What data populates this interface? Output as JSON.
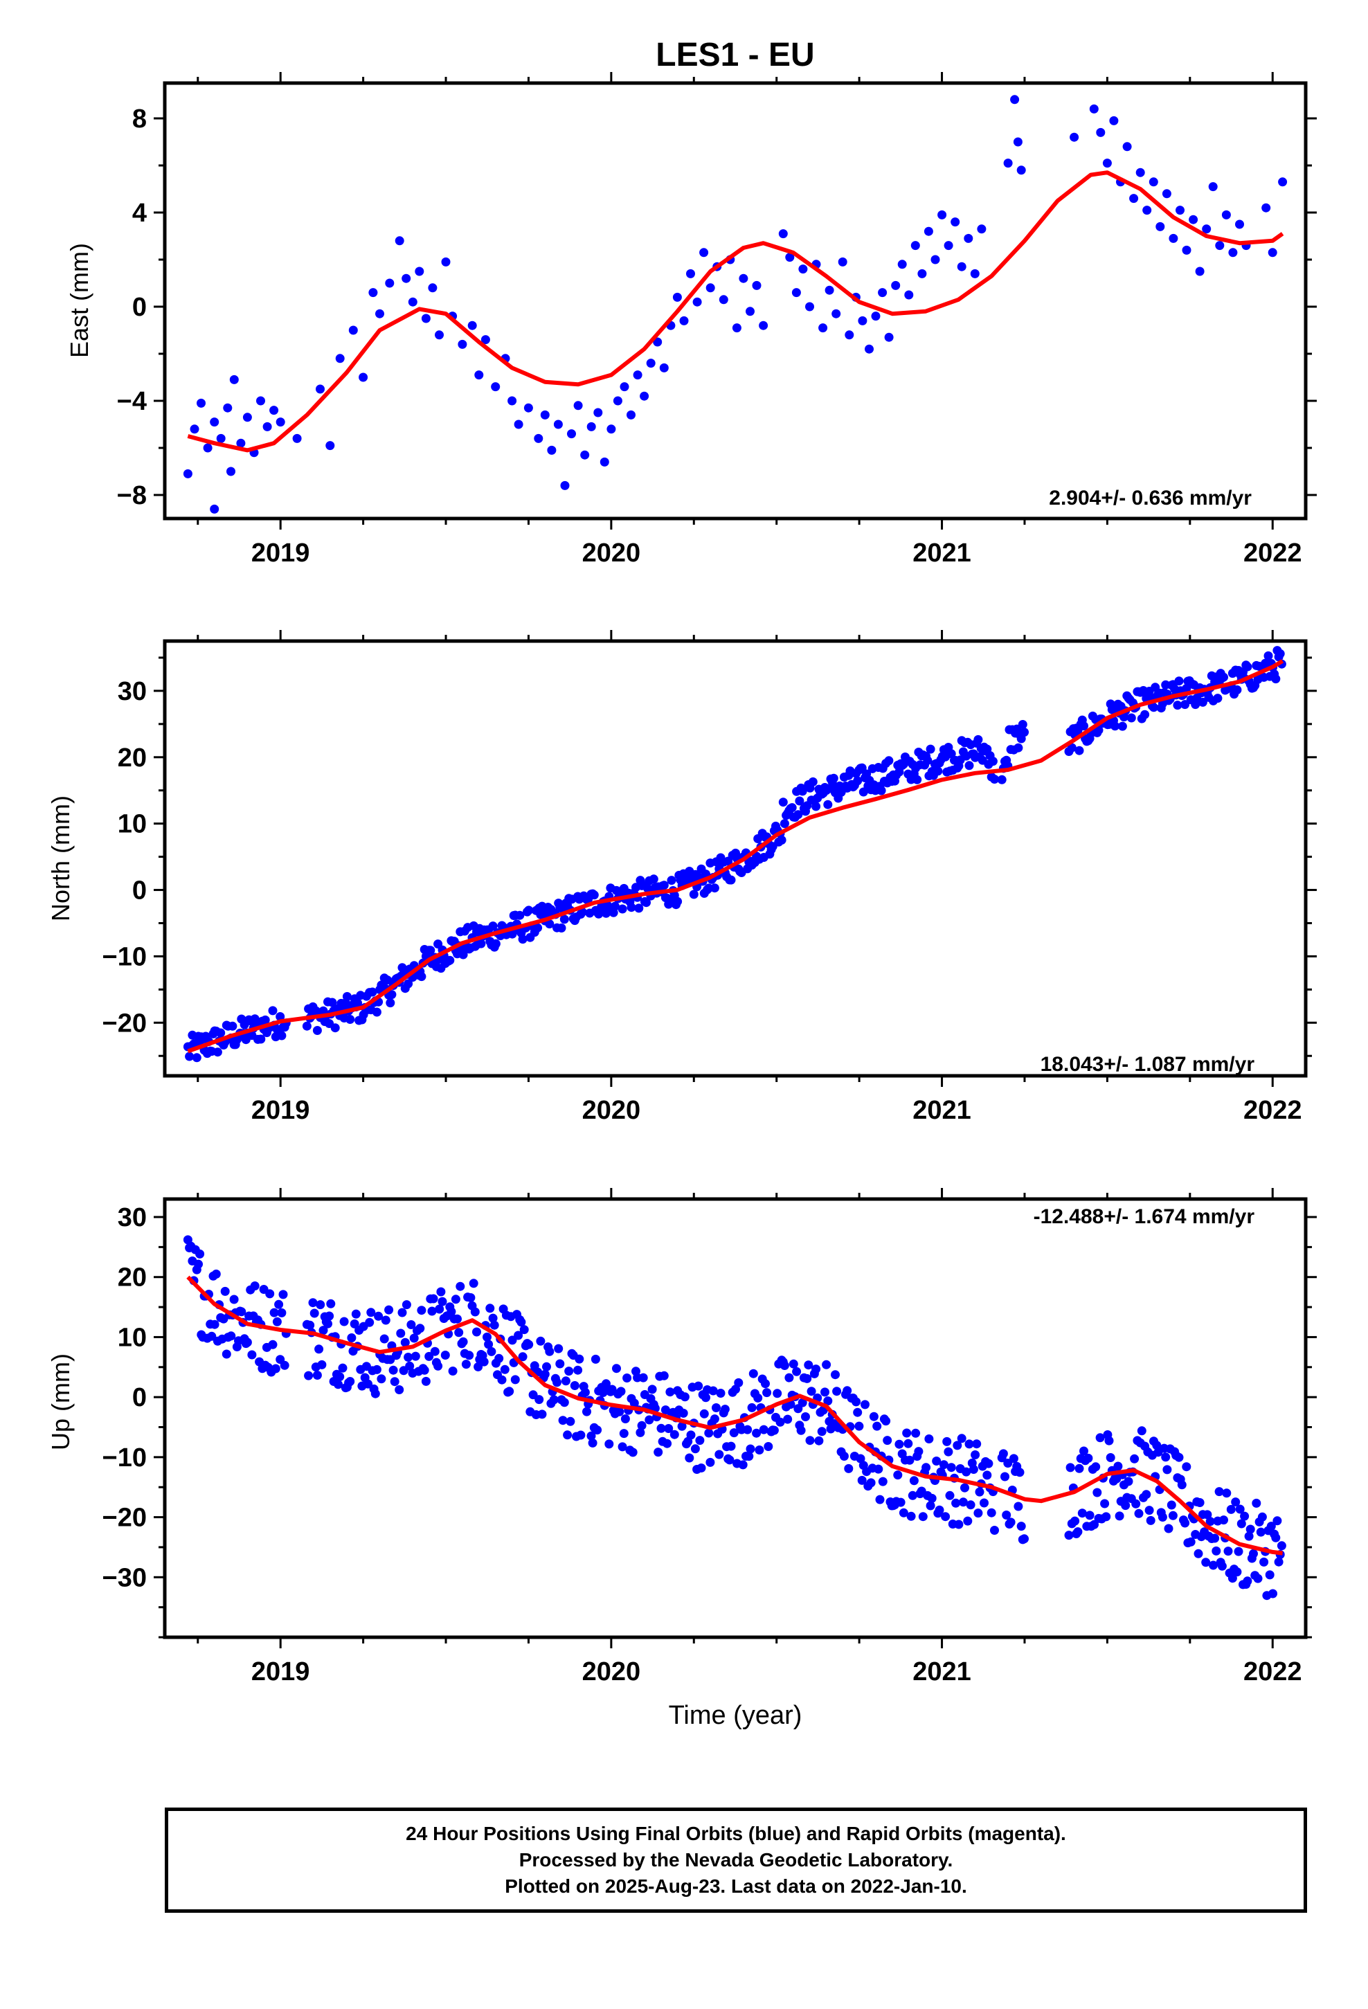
{
  "title": "LES1 - EU",
  "xlabel": "Time (year)",
  "colors": {
    "points": "#0000ff",
    "fit": "#ff0000",
    "frame": "#000000"
  },
  "caption": {
    "line1": "24 Hour Positions Using Final Orbits (blue) and Rapid Orbits (magenta).",
    "line2": "Processed by the Nevada Geodetic Laboratory.",
    "line3": "Plotted on 2025-Aug-23. Last data on 2022-Jan-10."
  },
  "chart_data": [
    {
      "type": "scatter",
      "ylabel": "East (mm)",
      "rate": "2.904+/- 0.636 mm/yr",
      "rate_position": "bottom-right",
      "xlim": [
        2018.65,
        2022.1
      ],
      "ylim": [
        -9,
        9.5
      ],
      "xticks": [
        2019,
        2020,
        2021,
        2022
      ],
      "yticks": [
        -8,
        -4,
        0,
        4,
        8
      ],
      "fit": [
        [
          2018.72,
          -5.5
        ],
        [
          2018.8,
          -5.8
        ],
        [
          2018.9,
          -6.1
        ],
        [
          2018.98,
          -5.8
        ],
        [
          2019.08,
          -4.6
        ],
        [
          2019.2,
          -2.8
        ],
        [
          2019.3,
          -1.0
        ],
        [
          2019.42,
          -0.1
        ],
        [
          2019.5,
          -0.3
        ],
        [
          2019.6,
          -1.5
        ],
        [
          2019.7,
          -2.6
        ],
        [
          2019.8,
          -3.2
        ],
        [
          2019.9,
          -3.3
        ],
        [
          2020.0,
          -2.9
        ],
        [
          2020.1,
          -1.8
        ],
        [
          2020.2,
          -0.2
        ],
        [
          2020.3,
          1.5
        ],
        [
          2020.4,
          2.5
        ],
        [
          2020.46,
          2.7
        ],
        [
          2020.55,
          2.3
        ],
        [
          2020.65,
          1.3
        ],
        [
          2020.75,
          0.2
        ],
        [
          2020.85,
          -0.3
        ],
        [
          2020.95,
          -0.2
        ],
        [
          2021.05,
          0.3
        ],
        [
          2021.15,
          1.3
        ],
        [
          2021.25,
          2.8
        ],
        [
          2021.35,
          4.5
        ],
        [
          2021.45,
          5.6
        ],
        [
          2021.5,
          5.7
        ],
        [
          2021.6,
          5.0
        ],
        [
          2021.7,
          3.8
        ],
        [
          2021.8,
          3.0
        ],
        [
          2021.9,
          2.7
        ],
        [
          2022.0,
          2.8
        ],
        [
          2022.03,
          3.1
        ]
      ],
      "points": [
        [
          2018.72,
          -7.1
        ],
        [
          2018.74,
          -5.2
        ],
        [
          2018.76,
          -4.1
        ],
        [
          2018.78,
          -6.0
        ],
        [
          2018.8,
          -4.9
        ],
        [
          2018.82,
          -5.6
        ],
        [
          2018.84,
          -4.3
        ],
        [
          2018.86,
          -3.1
        ],
        [
          2018.88,
          -5.8
        ],
        [
          2018.9,
          -4.7
        ],
        [
          2018.92,
          -6.2
        ],
        [
          2018.94,
          -4.0
        ],
        [
          2018.96,
          -5.1
        ],
        [
          2018.98,
          -4.4
        ],
        [
          2019.0,
          -4.9
        ],
        [
          2018.8,
          -8.6
        ],
        [
          2018.85,
          -7.0
        ],
        [
          2019.05,
          -5.6
        ],
        [
          2019.12,
          -3.5
        ],
        [
          2019.15,
          -5.9
        ],
        [
          2019.18,
          -2.2
        ],
        [
          2019.22,
          -1.0
        ],
        [
          2019.25,
          -3.0
        ],
        [
          2019.28,
          0.6
        ],
        [
          2019.3,
          -0.3
        ],
        [
          2019.33,
          1.0
        ],
        [
          2019.36,
          2.8
        ],
        [
          2019.38,
          1.2
        ],
        [
          2019.4,
          0.2
        ],
        [
          2019.42,
          1.5
        ],
        [
          2019.44,
          -0.5
        ],
        [
          2019.46,
          0.8
        ],
        [
          2019.48,
          -1.2
        ],
        [
          2019.5,
          1.9
        ],
        [
          2019.52,
          -0.4
        ],
        [
          2019.55,
          -1.6
        ],
        [
          2019.58,
          -0.8
        ],
        [
          2019.6,
          -2.9
        ],
        [
          2019.62,
          -1.4
        ],
        [
          2019.65,
          -3.4
        ],
        [
          2019.68,
          -2.2
        ],
        [
          2019.7,
          -4.0
        ],
        [
          2019.72,
          -5.0
        ],
        [
          2019.75,
          -4.3
        ],
        [
          2019.78,
          -5.6
        ],
        [
          2019.8,
          -4.6
        ],
        [
          2019.82,
          -6.1
        ],
        [
          2019.84,
          -5.0
        ],
        [
          2019.86,
          -7.6
        ],
        [
          2019.88,
          -5.4
        ],
        [
          2019.9,
          -4.2
        ],
        [
          2019.92,
          -6.3
        ],
        [
          2019.94,
          -5.1
        ],
        [
          2019.96,
          -4.5
        ],
        [
          2019.98,
          -6.6
        ],
        [
          2020.0,
          -5.2
        ],
        [
          2020.02,
          -4.0
        ],
        [
          2020.04,
          -3.4
        ],
        [
          2020.06,
          -4.6
        ],
        [
          2020.08,
          -2.9
        ],
        [
          2020.1,
          -3.8
        ],
        [
          2020.12,
          -2.4
        ],
        [
          2020.14,
          -1.5
        ],
        [
          2020.16,
          -2.6
        ],
        [
          2020.18,
          -0.8
        ],
        [
          2020.2,
          0.4
        ],
        [
          2020.22,
          -0.6
        ],
        [
          2020.24,
          1.4
        ],
        [
          2020.26,
          0.2
        ],
        [
          2020.28,
          2.3
        ],
        [
          2020.3,
          0.8
        ],
        [
          2020.32,
          1.7
        ],
        [
          2020.34,
          0.3
        ],
        [
          2020.36,
          2.0
        ],
        [
          2020.38,
          -0.9
        ],
        [
          2020.4,
          1.2
        ],
        [
          2020.42,
          -0.2
        ],
        [
          2020.44,
          0.9
        ],
        [
          2020.46,
          -0.8
        ],
        [
          2020.52,
          3.1
        ],
        [
          2020.54,
          2.1
        ],
        [
          2020.56,
          0.6
        ],
        [
          2020.58,
          1.6
        ],
        [
          2020.6,
          0.0
        ],
        [
          2020.62,
          1.8
        ],
        [
          2020.64,
          -0.9
        ],
        [
          2020.66,
          0.7
        ],
        [
          2020.68,
          -0.3
        ],
        [
          2020.7,
          1.9
        ],
        [
          2020.72,
          -1.2
        ],
        [
          2020.74,
          0.4
        ],
        [
          2020.76,
          -0.6
        ],
        [
          2020.78,
          -1.8
        ],
        [
          2020.8,
          -0.4
        ],
        [
          2020.82,
          0.6
        ],
        [
          2020.84,
          -1.3
        ],
        [
          2020.86,
          0.9
        ],
        [
          2020.88,
          1.8
        ],
        [
          2020.9,
          0.5
        ],
        [
          2020.92,
          2.6
        ],
        [
          2020.94,
          1.4
        ],
        [
          2020.96,
          3.2
        ],
        [
          2020.98,
          2.0
        ],
        [
          2021.0,
          3.9
        ],
        [
          2021.02,
          2.6
        ],
        [
          2021.04,
          3.6
        ],
        [
          2021.06,
          1.7
        ],
        [
          2021.08,
          2.9
        ],
        [
          2021.1,
          1.4
        ],
        [
          2021.12,
          3.3
        ],
        [
          2021.2,
          6.1
        ],
        [
          2021.22,
          8.8
        ],
        [
          2021.23,
          7.0
        ],
        [
          2021.24,
          5.8
        ],
        [
          2021.4,
          7.2
        ],
        [
          2021.46,
          8.4
        ],
        [
          2021.48,
          7.4
        ],
        [
          2021.5,
          6.1
        ],
        [
          2021.52,
          7.9
        ],
        [
          2021.54,
          5.3
        ],
        [
          2021.56,
          6.8
        ],
        [
          2021.58,
          4.6
        ],
        [
          2021.6,
          5.7
        ],
        [
          2021.62,
          4.1
        ],
        [
          2021.64,
          5.3
        ],
        [
          2021.66,
          3.4
        ],
        [
          2021.68,
          4.8
        ],
        [
          2021.7,
          2.9
        ],
        [
          2021.72,
          4.1
        ],
        [
          2021.74,
          2.4
        ],
        [
          2021.76,
          3.7
        ],
        [
          2021.78,
          1.5
        ],
        [
          2021.8,
          3.3
        ],
        [
          2021.82,
          5.1
        ],
        [
          2021.84,
          2.6
        ],
        [
          2021.86,
          3.9
        ],
        [
          2021.88,
          2.3
        ],
        [
          2021.9,
          3.5
        ],
        [
          2021.92,
          2.6
        ],
        [
          2021.98,
          4.2
        ],
        [
          2022.0,
          2.3
        ],
        [
          2022.03,
          5.3
        ]
      ]
    },
    {
      "type": "scatter",
      "ylabel": "North (mm)",
      "rate": "18.043+/- 1.087 mm/yr",
      "rate_position": "bottom-right",
      "xlim": [
        2018.65,
        2022.1
      ],
      "ylim": [
        -28,
        37.5
      ],
      "xticks": [
        2019,
        2020,
        2021,
        2022
      ],
      "yticks": [
        -20,
        -10,
        0,
        10,
        20,
        30
      ],
      "fit": [
        [
          2018.72,
          -24.3
        ],
        [
          2018.85,
          -22.0
        ],
        [
          2019.0,
          -19.8
        ],
        [
          2019.15,
          -18.8
        ],
        [
          2019.25,
          -17.7
        ],
        [
          2019.35,
          -14.2
        ],
        [
          2019.45,
          -10.5
        ],
        [
          2019.55,
          -8.0
        ],
        [
          2019.65,
          -6.5
        ],
        [
          2019.8,
          -4.5
        ],
        [
          2019.95,
          -1.9
        ],
        [
          2020.1,
          -0.6
        ],
        [
          2020.2,
          0.0
        ],
        [
          2020.3,
          1.9
        ],
        [
          2020.4,
          4.6
        ],
        [
          2020.5,
          8.3
        ],
        [
          2020.6,
          10.9
        ],
        [
          2020.7,
          12.4
        ],
        [
          2020.8,
          13.7
        ],
        [
          2020.9,
          15.1
        ],
        [
          2021.0,
          16.6
        ],
        [
          2021.1,
          17.6
        ],
        [
          2021.2,
          18.1
        ],
        [
          2021.3,
          19.5
        ],
        [
          2021.4,
          22.6
        ],
        [
          2021.5,
          25.9
        ],
        [
          2021.6,
          27.9
        ],
        [
          2021.7,
          29.2
        ],
        [
          2021.8,
          30.2
        ],
        [
          2021.9,
          31.4
        ],
        [
          2022.0,
          33.6
        ],
        [
          2022.03,
          34.5
        ]
      ]
    },
    {
      "type": "scatter",
      "ylabel": "Up (mm)",
      "rate": "-12.488+/- 1.674 mm/yr",
      "rate_position": "top-right",
      "xlim": [
        2018.65,
        2022.1
      ],
      "ylim": [
        -40,
        33
      ],
      "xticks": [
        2019,
        2020,
        2021,
        2022
      ],
      "yticks": [
        -30,
        -20,
        -10,
        0,
        10,
        20,
        30
      ],
      "fit": [
        [
          2018.72,
          20.0
        ],
        [
          2018.8,
          15.5
        ],
        [
          2018.9,
          12.2
        ],
        [
          2019.0,
          11.2
        ],
        [
          2019.1,
          10.6
        ],
        [
          2019.2,
          9.0
        ],
        [
          2019.3,
          7.5
        ],
        [
          2019.4,
          8.4
        ],
        [
          2019.5,
          11.1
        ],
        [
          2019.58,
          12.8
        ],
        [
          2019.65,
          10.5
        ],
        [
          2019.72,
          6.0
        ],
        [
          2019.8,
          2.0
        ],
        [
          2019.9,
          -0.2
        ],
        [
          2020.0,
          -1.3
        ],
        [
          2020.1,
          -2.1
        ],
        [
          2020.2,
          -3.8
        ],
        [
          2020.3,
          -5.1
        ],
        [
          2020.4,
          -3.8
        ],
        [
          2020.5,
          -1.2
        ],
        [
          2020.57,
          0.2
        ],
        [
          2020.65,
          -1.5
        ],
        [
          2020.75,
          -7.5
        ],
        [
          2020.85,
          -11.5
        ],
        [
          2020.95,
          -13.2
        ],
        [
          2021.05,
          -13.8
        ],
        [
          2021.15,
          -15.0
        ],
        [
          2021.25,
          -17.0
        ],
        [
          2021.3,
          -17.3
        ],
        [
          2021.4,
          -15.8
        ],
        [
          2021.5,
          -12.8
        ],
        [
          2021.58,
          -12.2
        ],
        [
          2021.65,
          -14.0
        ],
        [
          2021.72,
          -17.3
        ],
        [
          2021.8,
          -21.5
        ],
        [
          2021.9,
          -24.5
        ],
        [
          2022.0,
          -25.8
        ],
        [
          2022.03,
          -26.0
        ]
      ]
    }
  ]
}
